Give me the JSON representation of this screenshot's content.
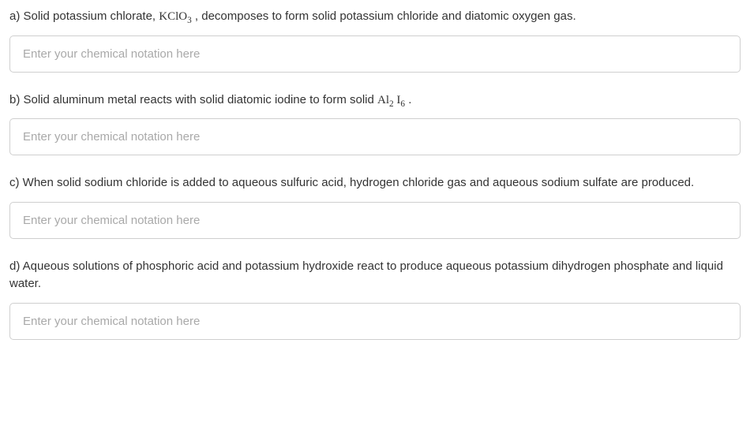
{
  "questions": [
    {
      "label": "a",
      "prompt_prefix": "a) Solid potassium chlorate, ",
      "formula_html": "KClO<sub>3</sub>",
      "prompt_suffix": " , decomposes to form solid potassium chloride and diatomic oxygen gas.",
      "placeholder": "Enter your chemical notation here"
    },
    {
      "label": "b",
      "prompt_prefix": "b) Solid aluminum metal reacts with solid diatomic iodine to form solid ",
      "formula_html": "Al<sub>2</sub> I<sub>6</sub>",
      "prompt_suffix": " .",
      "placeholder": "Enter your chemical notation here"
    },
    {
      "label": "c",
      "prompt_prefix": "c) When solid sodium chloride is added to aqueous sulfuric acid, hydrogen chloride gas and aqueous sodium sulfate are produced.",
      "formula_html": "",
      "prompt_suffix": "",
      "placeholder": "Enter your chemical notation here"
    },
    {
      "label": "d",
      "prompt_prefix": "d) Aqueous solutions of phosphoric acid and potassium hydroxide react to produce aqueous potassium dihydrogen phosphate and liquid water.",
      "formula_html": "",
      "prompt_suffix": "",
      "placeholder": "Enter your chemical notation here"
    }
  ],
  "colors": {
    "text": "#333333",
    "placeholder": "#a9a9a9",
    "border": "#cfcfcf",
    "background": "#ffffff"
  },
  "input_border_radius": 5,
  "font_size_prompt": 15,
  "font_size_input": 15
}
